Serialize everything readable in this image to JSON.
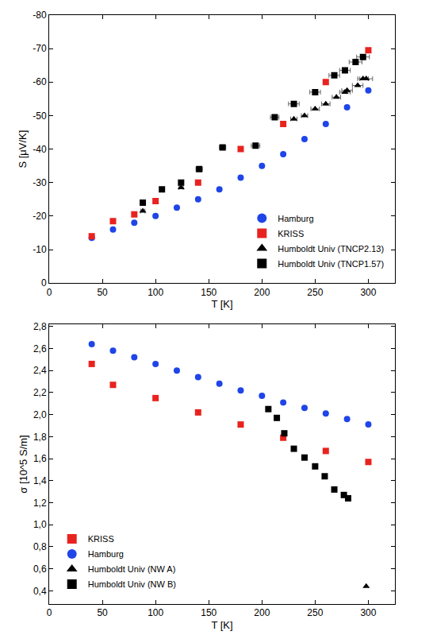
{
  "chart_data": [
    {
      "type": "scatter",
      "x_label": "T [K]",
      "y_label": "S [μV/K]",
      "xlim": [
        0,
        325
      ],
      "xticks": [
        0,
        50,
        100,
        150,
        200,
        250,
        300
      ],
      "ylim": [
        0,
        -80
      ],
      "yticks": [
        0,
        -10,
        -20,
        -30,
        -40,
        -50,
        -60,
        -70,
        -80
      ],
      "grid": false,
      "legend": "lower right",
      "series": [
        {
          "name": "Hamburg",
          "color": "#1f45e8",
          "marker": "circle",
          "x": [
            40,
            60,
            80,
            100,
            120,
            140,
            160,
            180,
            200,
            220,
            240,
            260,
            280,
            300
          ],
          "values": [
            -13.5,
            -16,
            -18,
            -20,
            -22.5,
            -25,
            -28,
            -31.5,
            -35,
            -38.5,
            -43,
            -47.5,
            -52.5,
            -57.5
          ]
        },
        {
          "name": "KRISS",
          "color": "#e8231f",
          "marker": "square",
          "x": [
            40,
            60,
            80,
            100,
            140,
            180,
            220,
            260,
            300
          ],
          "values": [
            -14,
            -18.5,
            -20.5,
            -24.5,
            -30,
            -40,
            -47.5,
            -60,
            -69.5
          ]
        },
        {
          "name": "Humboldt Univ (TNCP2.13)",
          "color": "#000000",
          "marker": "triangle-up",
          "x": [
            88,
            124,
            230,
            240,
            250,
            260,
            270,
            278,
            280,
            290,
            295,
            298
          ],
          "values": [
            -21.5,
            -28.5,
            -49,
            -50,
            -52,
            -53.5,
            -55.5,
            -57,
            -57.5,
            -59,
            -61,
            -61
          ],
          "x_error": [
            2,
            2,
            3,
            3,
            4,
            4,
            4,
            5,
            5,
            5,
            5,
            6
          ]
        },
        {
          "name": "Humboldt Univ (TNCP1.57)",
          "color": "#000000",
          "marker": "square",
          "x": [
            88,
            106,
            124,
            141,
            163,
            194,
            212,
            230,
            250,
            268,
            278,
            288,
            295
          ],
          "values": [
            -24,
            -28,
            -30,
            -34,
            -40.5,
            -41,
            -49.5,
            -53.5,
            -57,
            -62,
            -63.5,
            -66,
            -67.5
          ],
          "x_error": [
            2,
            2,
            2,
            3,
            3,
            4,
            4,
            5,
            5,
            5,
            5,
            6,
            6
          ]
        }
      ]
    },
    {
      "type": "scatter",
      "x_label": "T [K]",
      "y_label": "σ [10^5 S/m]",
      "xlim": [
        0,
        325
      ],
      "xticks": [
        0,
        50,
        100,
        150,
        200,
        250,
        300
      ],
      "ylim": [
        0.28,
        2.82
      ],
      "yticks": [
        {
          "value": 0.4,
          "label": "0,4"
        },
        {
          "value": 0.6,
          "label": "0,6"
        },
        {
          "value": 0.8,
          "label": "0,8"
        },
        {
          "value": 1.0,
          "label": "1,0"
        },
        {
          "value": 1.2,
          "label": "1,2"
        },
        {
          "value": 1.4,
          "label": "1,4"
        },
        {
          "value": 1.6,
          "label": "1,6"
        },
        {
          "value": 1.8,
          "label": "1,8"
        },
        {
          "value": 2.0,
          "label": "2,0"
        },
        {
          "value": 2.2,
          "label": "2,2"
        },
        {
          "value": 2.4,
          "label": "2,4"
        },
        {
          "value": 2.6,
          "label": "2,6"
        },
        {
          "value": 2.8,
          "label": "2,8"
        }
      ],
      "grid": false,
      "legend": "lower left",
      "series": [
        {
          "name": "KRISS",
          "color": "#e8231f",
          "marker": "square",
          "x": [
            40,
            60,
            100,
            140,
            180,
            220,
            260,
            300
          ],
          "values": [
            2.46,
            2.27,
            2.15,
            2.02,
            1.91,
            1.79,
            1.67,
            1.57
          ]
        },
        {
          "name": "Hamburg",
          "color": "#1f45e8",
          "marker": "circle",
          "x": [
            40,
            60,
            80,
            100,
            120,
            140,
            160,
            180,
            200,
            220,
            240,
            260,
            280,
            300
          ],
          "values": [
            2.64,
            2.58,
            2.52,
            2.46,
            2.4,
            2.34,
            2.28,
            2.22,
            2.17,
            2.11,
            2.06,
            2.01,
            1.96,
            1.91
          ]
        },
        {
          "name": "Humboldt Univ (NW A)",
          "color": "#000000",
          "marker": "triangle-up",
          "x": [
            298
          ],
          "values": [
            0.44
          ]
        },
        {
          "name": "Humboldt Univ (NW B)",
          "color": "#000000",
          "marker": "square",
          "x": [
            206,
            214,
            221,
            230,
            240,
            250,
            259,
            268,
            277,
            281
          ],
          "values": [
            2.05,
            1.97,
            1.83,
            1.69,
            1.61,
            1.53,
            1.44,
            1.32,
            1.27,
            1.24
          ]
        }
      ]
    }
  ]
}
